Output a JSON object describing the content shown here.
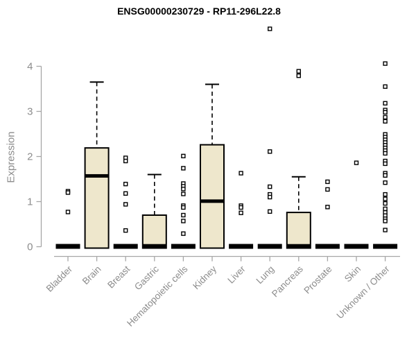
{
  "title": "ENSG00000230729 - RP11-296L22.8",
  "colors": {
    "box_fill": "#EEE7CC",
    "box_border": "#000000",
    "median": "#000000",
    "axis_line": "#A6A6A6",
    "tick_text": "#8C8C8C",
    "title_text": "#000000",
    "outlier_fill": "#FFFFFF",
    "outlier_border": "#000000"
  },
  "chart_data": {
    "type": "boxplot",
    "title": "ENSG00000230729 - RP11-296L22.8",
    "xlabel": "",
    "ylabel": "Expression",
    "ylim": [
      0,
      4
    ],
    "yticks": [
      0,
      1,
      2,
      3,
      4
    ],
    "grid": false,
    "legend": "none",
    "categories": [
      "Bladder",
      "Brain",
      "Breast",
      "Gastric",
      "Hematopoietic cells",
      "Kidney",
      "Liver",
      "Lung",
      "Pancreas",
      "Prostate",
      "Skin",
      "Unknown / Other"
    ],
    "series": [
      {
        "category": "Bladder",
        "collapsed": true,
        "whisker_low": 0,
        "q1": 0,
        "median": 0.02,
        "q3": 0.02,
        "whisker_high": 0.02,
        "outliers": [
          1.23,
          1.2,
          0.77
        ]
      },
      {
        "category": "Brain",
        "collapsed": false,
        "whisker_low": 0,
        "q1": 0,
        "median": 1.57,
        "q3": 2.19,
        "whisker_high": 3.65,
        "outliers": []
      },
      {
        "category": "Breast",
        "collapsed": true,
        "whisker_low": 0,
        "q1": 0,
        "median": 0.02,
        "q3": 0.02,
        "whisker_high": 0.02,
        "outliers": [
          1.97,
          1.9,
          1.39,
          1.18,
          0.94,
          0.36
        ]
      },
      {
        "category": "Gastric",
        "collapsed": false,
        "whisker_low": 0,
        "q1": 0,
        "median": 0.02,
        "q3": 0.7,
        "whisker_high": 1.6,
        "outliers": []
      },
      {
        "category": "Hematopoietic cells",
        "collapsed": true,
        "whisker_low": 0,
        "q1": 0,
        "median": 0.02,
        "q3": 0.02,
        "whisker_high": 0.02,
        "outliers": [
          2.01,
          1.74,
          1.4,
          1.34,
          1.28,
          1.17,
          0.91,
          0.87,
          0.7,
          0.57,
          0.29
        ]
      },
      {
        "category": "Kidney",
        "collapsed": false,
        "whisker_low": 0,
        "q1": 0,
        "median": 1.01,
        "q3": 2.26,
        "whisker_high": 3.6,
        "outliers": []
      },
      {
        "category": "Liver",
        "collapsed": true,
        "whisker_low": 0,
        "q1": 0,
        "median": 0.02,
        "q3": 0.02,
        "whisker_high": 0.02,
        "outliers": [
          1.63,
          0.91,
          0.87,
          0.75
        ]
      },
      {
        "category": "Lung",
        "collapsed": true,
        "whisker_low": 0,
        "q1": 0,
        "median": 0.02,
        "q3": 0.02,
        "whisker_high": 0.02,
        "outliers": [
          4.83,
          2.11,
          1.33,
          1.16,
          1.1,
          0.78
        ]
      },
      {
        "category": "Pancreas",
        "collapsed": false,
        "whisker_low": 0,
        "q1": 0,
        "median": 0.02,
        "q3": 0.76,
        "whisker_high": 1.55,
        "outliers": [
          3.89,
          3.79
        ]
      },
      {
        "category": "Prostate",
        "collapsed": true,
        "whisker_low": 0,
        "q1": 0,
        "median": 0.02,
        "q3": 0.02,
        "whisker_high": 0.02,
        "outliers": [
          1.44,
          1.27,
          0.88
        ]
      },
      {
        "category": "Skin",
        "collapsed": true,
        "whisker_low": 0,
        "q1": 0,
        "median": 0.02,
        "q3": 0.02,
        "whisker_high": 0.02,
        "outliers": [
          1.86
        ]
      },
      {
        "category": "Unknown / Other",
        "collapsed": true,
        "whisker_low": 0,
        "q1": 0,
        "median": 0.02,
        "q3": 0.02,
        "whisker_high": 0.02,
        "outliers": [
          4.06,
          3.55,
          3.18,
          3.03,
          2.98,
          2.87,
          2.78,
          2.49,
          2.43,
          2.37,
          2.31,
          2.25,
          2.19,
          2.13,
          2.07,
          1.9,
          1.84,
          1.63,
          1.58,
          1.42,
          1.16,
          1.06,
          0.96,
          0.84,
          0.76,
          0.69,
          0.62,
          0.57,
          0.37
        ]
      }
    ]
  }
}
